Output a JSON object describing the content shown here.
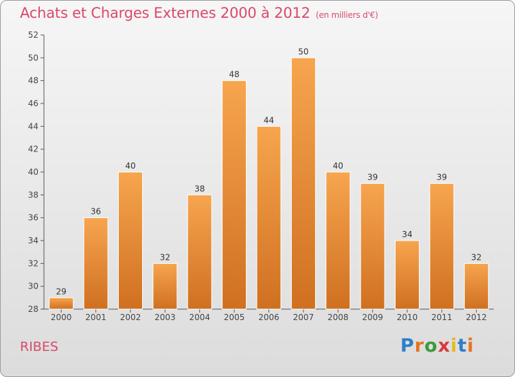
{
  "chart_data": {
    "type": "bar",
    "title": "Achats et Charges Externes 2000 à 2012",
    "subtitle": "(en milliers d'€)",
    "categories": [
      "2000",
      "2001",
      "2002",
      "2003",
      "2004",
      "2005",
      "2006",
      "2007",
      "2008",
      "2009",
      "2010",
      "2011",
      "2012"
    ],
    "values": [
      29,
      36,
      40,
      32,
      38,
      48,
      44,
      50,
      40,
      39,
      34,
      39,
      32
    ],
    "ylim": [
      28,
      52
    ],
    "yticks": [
      28,
      30,
      32,
      34,
      36,
      38,
      40,
      42,
      44,
      46,
      48,
      50,
      52
    ],
    "grid": false,
    "xlabel": "",
    "ylabel": ""
  },
  "commune": "RIBES",
  "logo": {
    "letters": [
      "P",
      "r",
      "o",
      "x",
      "i",
      "t",
      "i"
    ],
    "text": "Proxiti"
  },
  "colors": {
    "bar_top": "#f7a54f",
    "bar_bottom": "#cf7020",
    "accent": "#d84a6a",
    "axis": "#555555",
    "logo": [
      "#2e7ec9",
      "#e8731f",
      "#3a9a3a",
      "#d83a3a",
      "#e8b81f",
      "#2e7ec9",
      "#e8731f"
    ]
  }
}
